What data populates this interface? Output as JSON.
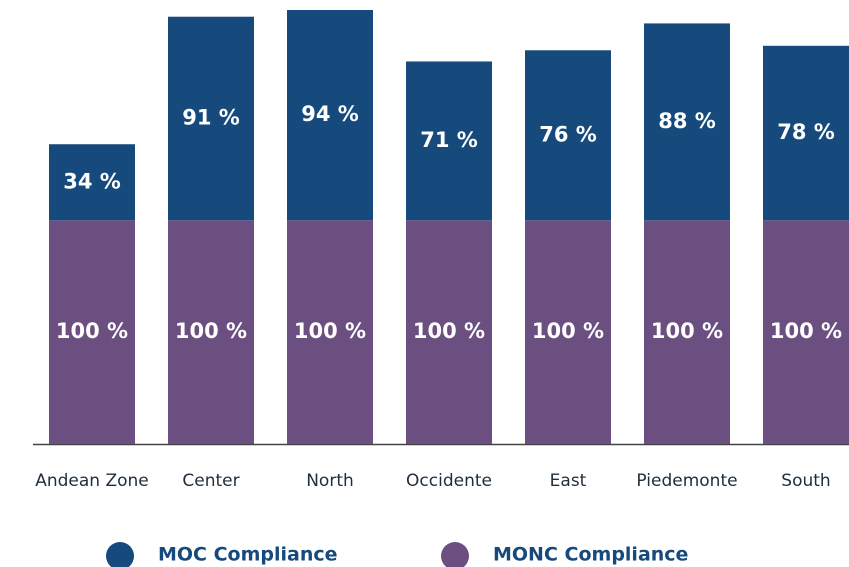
{
  "chart_data": {
    "type": "stacked_bar",
    "categories": [
      "Andean Zone",
      "Center",
      "North",
      "Occidente",
      "East",
      "Piedemonte",
      "South"
    ],
    "series": [
      {
        "name": "MOC Compliance",
        "color": "#174a7c",
        "values": [
          34,
          91,
          94,
          71,
          76,
          88,
          78
        ],
        "value_labels": [
          "34 %",
          "91 %",
          "94 %",
          "71 %",
          "76 %",
          "88 %",
          "78 %"
        ]
      },
      {
        "name": "MONC Compliance",
        "color": "#6b4f80",
        "values": [
          100,
          100,
          100,
          100,
          100,
          100,
          100
        ],
        "value_labels": [
          "100 %",
          "100 %",
          "100 %",
          "100 %",
          "100 %",
          "100 %",
          "100 %"
        ]
      }
    ]
  }
}
